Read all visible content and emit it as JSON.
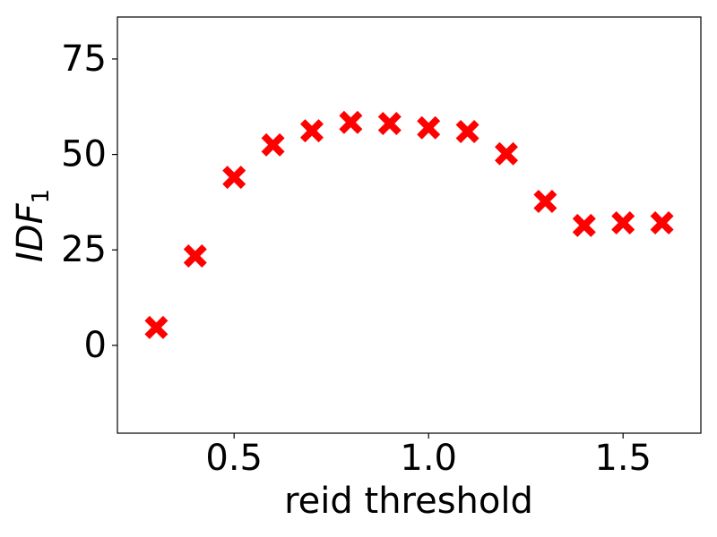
{
  "chart_data": {
    "type": "scatter",
    "xlabel": "reid threshold",
    "ylabel": "IDF",
    "ylabel_sub": "1",
    "x": [
      0.3,
      0.4,
      0.5,
      0.6,
      0.7,
      0.8,
      0.9,
      1.0,
      1.1,
      1.2,
      1.3,
      1.4,
      1.5,
      1.6
    ],
    "series": [
      {
        "color": "#ff0000",
        "values": [
          4.7,
          23.4,
          44,
          52.5,
          56.2,
          58.4,
          58.1,
          57,
          56,
          50.2,
          37.7,
          31.4,
          32.1,
          32.1
        ]
      }
    ],
    "xlim": [
      0.2,
      1.7
    ],
    "xticks": [
      0.5,
      {
        "value": 1,
        "label": "1.0"
      },
      1.5
    ],
    "ylim": [
      -23,
      86
    ],
    "yticks": [
      0,
      25,
      50,
      75
    ]
  }
}
